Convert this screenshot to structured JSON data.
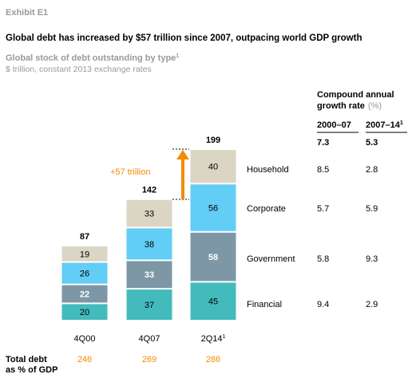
{
  "exhibit": "Exhibit E1",
  "headline": "Global debt has increased by $57 trillion since 2007, outpacing world GDP growth",
  "colors": {
    "household": "#dad6c3",
    "corporate": "#62cdf5",
    "government": "#7e97a7",
    "financial": "#43bbbd",
    "accent": "#f28c00",
    "muted": "#9a9a9a"
  },
  "chart_data": {
    "type": "bar",
    "stacked": true,
    "title": "Global stock of debt outstanding by type",
    "title_footnote": "1",
    "subtitle": "$ trillion, constant 2013 exchange rates",
    "categories": [
      "4Q00",
      "4Q07",
      "2Q14"
    ],
    "category_footnotes": [
      "",
      "",
      "1"
    ],
    "series": [
      {
        "name": "Financial",
        "values": [
          20,
          37,
          45
        ],
        "label_color": [
          "#000000",
          "#000000",
          "#000000"
        ],
        "label_bold": [
          false,
          false,
          false
        ]
      },
      {
        "name": "Government",
        "values": [
          22,
          33,
          58
        ],
        "label_color": [
          "#ffffff",
          "#ffffff",
          "#ffffff"
        ],
        "label_bold": [
          true,
          true,
          true
        ]
      },
      {
        "name": "Corporate",
        "values": [
          26,
          38,
          56
        ],
        "label_color": [
          "#000000",
          "#000000",
          "#000000"
        ],
        "label_bold": [
          false,
          false,
          false
        ]
      },
      {
        "name": "Household",
        "values": [
          19,
          33,
          40
        ],
        "label_color": [
          "#000000",
          "#000000",
          "#000000"
        ],
        "label_bold": [
          false,
          false,
          false
        ]
      }
    ],
    "totals": [
      87,
      142,
      199
    ],
    "annotation": {
      "label": "+57 trillion",
      "from_category": "4Q07",
      "to_category": "2Q14"
    },
    "cagr": {
      "header_line1": "Compound annual",
      "header_line2": "growth rate",
      "header_unit": "(%)",
      "columns": [
        "2000–07",
        "2007–14"
      ],
      "column_footnotes": [
        "",
        "1"
      ],
      "total_row": [
        "7.3",
        "5.3"
      ],
      "rows": {
        "Household": [
          "8.5",
          "2.8"
        ],
        "Corporate": [
          "5.7",
          "5.9"
        ],
        "Government": [
          "5.8",
          "9.3"
        ],
        "Financial": [
          "9.4",
          "2.9"
        ]
      }
    },
    "total_debt_gdp": {
      "label_line1": "Total debt",
      "label_line2": "as % of GDP",
      "values": [
        "246",
        "269",
        "286"
      ]
    }
  }
}
